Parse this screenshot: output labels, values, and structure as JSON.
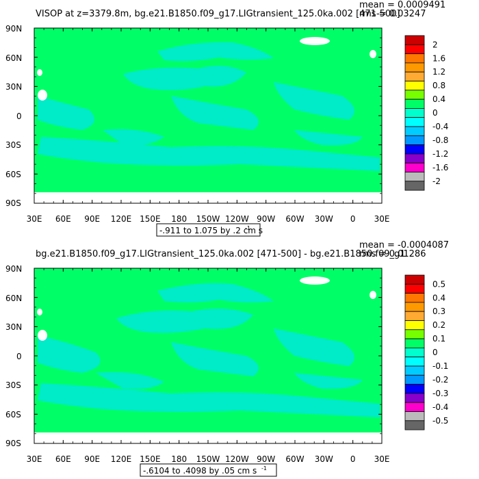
{
  "panels": [
    {
      "id": "top",
      "title": "VISOP at z=3379.8m, bg.e21.B1850.f09_g17.LIGtransient_125.0ka.002 [471-500]",
      "stats": {
        "mean": "mean = 0.0009491",
        "rms": "rms = 0.03247"
      },
      "range_label": "-.911 to 1.075 by .2 cm s",
      "units_exponent": "-1",
      "colorbar_labels": [
        "2",
        "1.6",
        "1.2",
        "0.8",
        "0.4",
        "0",
        "-0.4",
        "-0.8",
        "-1.2",
        "-1.6",
        "-2"
      ]
    },
    {
      "id": "bottom",
      "title": "bg.e21.B1850.f09_g17.LIGtransient_125.0ka.002 [471-500] - bg.e21.B1850.f09_g1",
      "stats": {
        "mean": "mean = -0.0004087",
        "rms": "rms = 0.01286"
      },
      "range_label": "-.6104 to .4098 by .05 cm s",
      "units_exponent": "-1",
      "colorbar_labels": [
        "0.5",
        "0.4",
        "0.3",
        "0.2",
        "0.1",
        "0",
        "-0.1",
        "-0.2",
        "-0.3",
        "-0.4",
        "-0.5"
      ]
    }
  ],
  "axes": {
    "lat_labels": [
      "90N",
      "60N",
      "30N",
      "0",
      "30S",
      "60S",
      "90S"
    ],
    "lon_labels": [
      "30E",
      "60E",
      "90E",
      "120E",
      "150E",
      "180",
      "150W",
      "120W",
      "90W",
      "60W",
      "30W",
      "0",
      "30E"
    ]
  },
  "colors": {
    "ocean": "#00ff66",
    "cyan_patch": "#00e8d8",
    "land": "#ffffff",
    "colorbar": [
      "#cc0000",
      "#ff0000",
      "#ff7700",
      "#ff9900",
      "#ffaa33",
      "#ffff00",
      "#77ff00",
      "#00ff66",
      "#00ffcc",
      "#00ffff",
      "#00ccff",
      "#0099ff",
      "#0000ff",
      "#8800cc",
      "#ff00cc",
      "#bbbbbb",
      "#666666"
    ]
  }
}
